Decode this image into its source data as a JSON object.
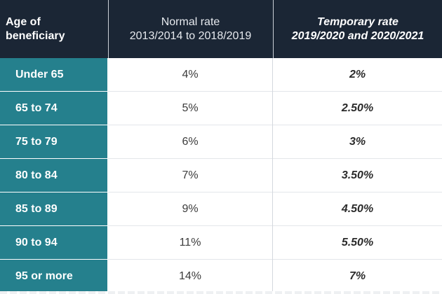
{
  "header": {
    "age_line1": "Age of",
    "age_line2": "beneficiary",
    "normal_line1": "Normal rate",
    "normal_line2": "2013/2014 to 2018/2019",
    "temp_line1": "Temporary rate",
    "temp_line2": "2019/2020 and 2020/2021"
  },
  "rows": [
    {
      "age": "Under 65",
      "normal": "4%",
      "temporary": "2%"
    },
    {
      "age": "65 to 74",
      "normal": "5%",
      "temporary": "2.50%"
    },
    {
      "age": "75 to 79",
      "normal": "6%",
      "temporary": "3%"
    },
    {
      "age": "80 to 84",
      "normal": "7%",
      "temporary": "3.50%"
    },
    {
      "age": "85 to 89",
      "normal": "9%",
      "temporary": "4.50%"
    },
    {
      "age": "90 to 94",
      "normal": "11%",
      "temporary": "5.50%"
    },
    {
      "age": "95 or more",
      "normal": "14%",
      "temporary": "7%"
    }
  ],
  "colors": {
    "header_bg": "#1b2635",
    "age_column_bg": "#25808d",
    "text_light": "#ffffff",
    "text_dark": "#3c3c3c"
  }
}
